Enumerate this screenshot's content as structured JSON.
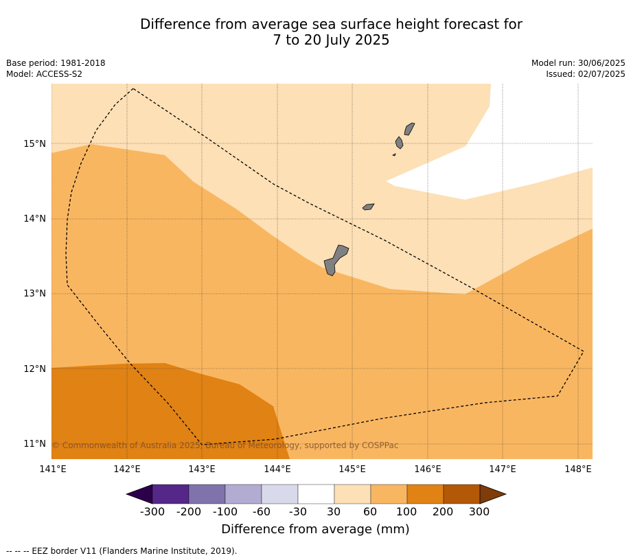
{
  "title": {
    "line1": "Difference from average sea surface height forecast for",
    "line2": "7 to 20 July 2025"
  },
  "meta_left": {
    "base_period": "Base period: 1981-2018",
    "model": "Model: ACCESS-S2"
  },
  "meta_right": {
    "model_run": "Model run: 30/06/2025",
    "issued": "Issued: 02/07/2025"
  },
  "map": {
    "lon_labels": [
      "141°E",
      "142°E",
      "143°E",
      "144°E",
      "145°E",
      "146°E",
      "147°E",
      "148°E"
    ],
    "lat_labels": [
      "15°N",
      "14°N",
      "13°N",
      "12°N",
      "11°N"
    ],
    "copyright": "© Commonwealth of Australia 2025, Bureau of Meteorology, supported by COSPPac",
    "region_colors": {
      "band_30_60": "#fde0b6",
      "band_60_100": "#f9b661",
      "band_100_200": "#e08214",
      "band_neutral": "#ffffff",
      "land": "#808080"
    }
  },
  "colorbar": {
    "title": "Difference from average (mm)",
    "ticks": [
      "-300",
      "-200",
      "-100",
      "-60",
      "-30",
      "30",
      "60",
      "100",
      "200",
      "300"
    ],
    "colors": [
      "#2d004b",
      "#542788",
      "#8073ac",
      "#b2abd2",
      "#d8daeb",
      "#ffffff",
      "#fde0b6",
      "#f9b661",
      "#e08214",
      "#b35806",
      "#7f3b08"
    ]
  },
  "footnote": "--  --  -- EEZ border V11 (Flanders Marine Institute, 2019)."
}
